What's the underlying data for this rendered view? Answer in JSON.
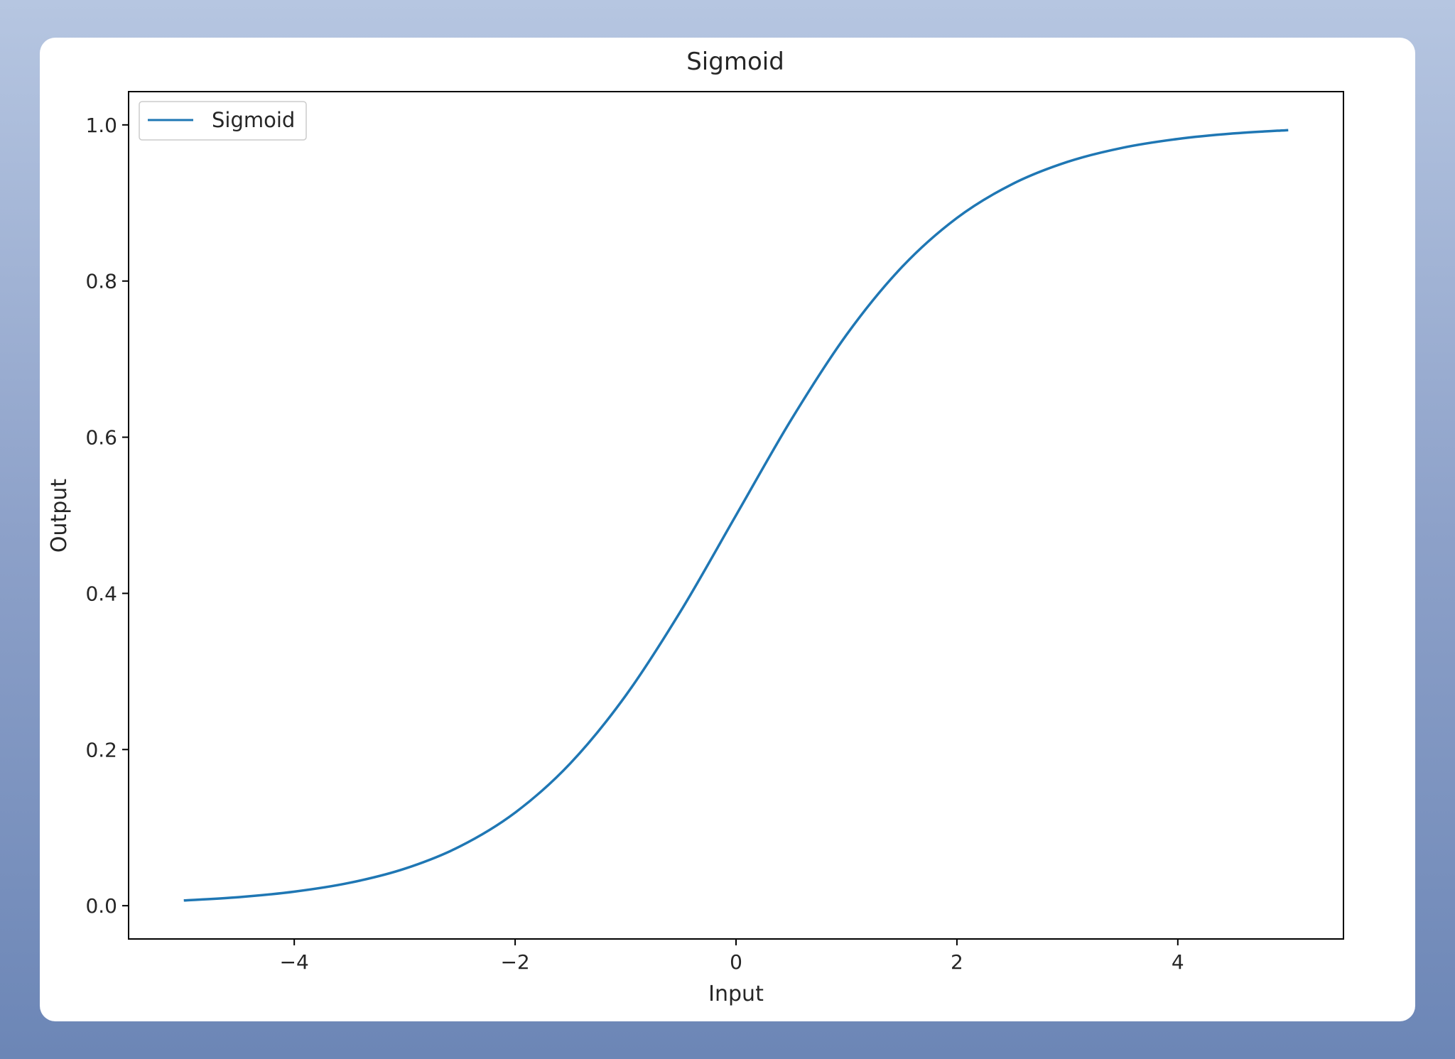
{
  "chart_data": {
    "type": "line",
    "title": "Sigmoid",
    "xlabel": "Input",
    "ylabel": "Output",
    "xlim": [
      -5.5,
      5.5
    ],
    "ylim": [
      -0.0426,
      1.0426
    ],
    "x_ticks": [
      -4,
      -2,
      0,
      2,
      4
    ],
    "x_tick_labels": [
      "−4",
      "−2",
      "0",
      "2",
      "4"
    ],
    "y_ticks": [
      0.0,
      0.2,
      0.4,
      0.6,
      0.8,
      1.0
    ],
    "y_tick_labels": [
      "0.0",
      "0.2",
      "0.4",
      "0.6",
      "0.8",
      "1.0"
    ],
    "grid": false,
    "legend_position": "upper-left",
    "series": [
      {
        "name": "Sigmoid",
        "color": "#1f77b4",
        "x": [
          -5.0,
          -4.5,
          -4.0,
          -3.5,
          -3.0,
          -2.5,
          -2.0,
          -1.5,
          -1.0,
          -0.5,
          0.0,
          0.5,
          1.0,
          1.5,
          2.0,
          2.5,
          3.0,
          3.5,
          4.0,
          4.5,
          5.0
        ],
        "y": [
          0.0067,
          0.011,
          0.018,
          0.0293,
          0.0474,
          0.0759,
          0.1192,
          0.1824,
          0.2689,
          0.3775,
          0.5,
          0.6225,
          0.7311,
          0.8176,
          0.8808,
          0.9241,
          0.9526,
          0.9707,
          0.982,
          0.989,
          0.9933
        ]
      }
    ]
  }
}
